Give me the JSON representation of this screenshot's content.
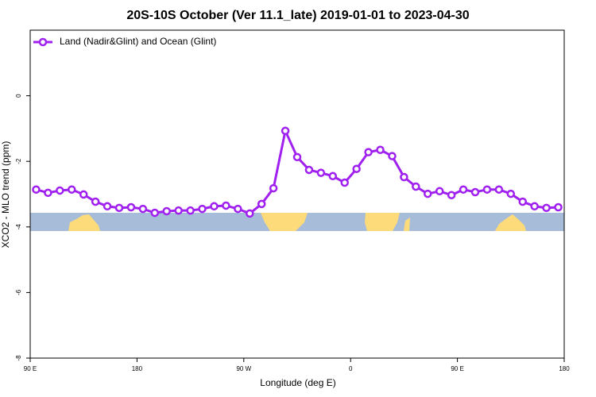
{
  "chart_data": {
    "type": "line",
    "title": "20S-10S October (Ver 11.1_late)   2019-01-01 to 2023-04-30",
    "x_label": "Longitude (deg E)",
    "y_label": "XCO2 - MLO trend (ppm)",
    "x": [
      95,
      105,
      115,
      125,
      135,
      145,
      155,
      165,
      175,
      185,
      195,
      205,
      215,
      225,
      235,
      245,
      255,
      265,
      275,
      285,
      295,
      305,
      315,
      325,
      335,
      345,
      355,
      365,
      375,
      385,
      395,
      405,
      415,
      425,
      435,
      445,
      455,
      465,
      475,
      485,
      495,
      505,
      515,
      525,
      535
    ],
    "series": [
      {
        "name": "Land (Nadir&Glint) and Ocean (Glint)",
        "color": "#a020f0",
        "values": [
          -2.86,
          -2.96,
          -2.89,
          -2.86,
          -3.01,
          -3.23,
          -3.37,
          -3.42,
          -3.4,
          -3.45,
          -3.57,
          -3.52,
          -3.5,
          -3.5,
          -3.45,
          -3.37,
          -3.35,
          -3.45,
          -3.59,
          -3.3,
          -2.82,
          -1.07,
          -1.87,
          -2.26,
          -2.35,
          -2.45,
          -2.65,
          -2.23,
          -1.72,
          -1.65,
          -1.84,
          -2.48,
          -2.77,
          -2.99,
          -2.91,
          -3.03,
          -2.86,
          -2.94,
          -2.86,
          -2.86,
          -2.99,
          -3.23,
          -3.37,
          -3.42,
          -3.4
        ]
      }
    ],
    "xlim": [
      90,
      540
    ],
    "xticks": [
      {
        "value": 90,
        "label": "90 E"
      },
      {
        "value": 180,
        "label": "180"
      },
      {
        "value": 270,
        "label": "90 W"
      },
      {
        "value": 360,
        "label": "0"
      },
      {
        "value": 450,
        "label": "90 E"
      },
      {
        "value": 540,
        "label": "180"
      }
    ],
    "ylim": [
      -8,
      2
    ],
    "yticks": [
      -8,
      -6,
      -4,
      -2,
      0
    ],
    "legend_position": "top-left"
  }
}
